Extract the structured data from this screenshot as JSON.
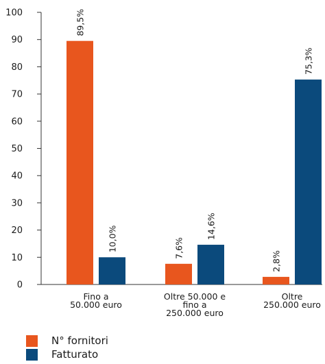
{
  "chart_data": {
    "type": "bar",
    "title": "",
    "xlabel": "",
    "ylabel": "",
    "ylim": [
      0,
      100
    ],
    "yticks": [
      0,
      10,
      20,
      30,
      40,
      50,
      60,
      70,
      80,
      90,
      100
    ],
    "grid": false,
    "legend_position": "bottom-left",
    "categories": [
      [
        "Fino a",
        "50.000 euro"
      ],
      [
        "Oltre 50.000 e",
        "fino a",
        "250.000 euro"
      ],
      [
        "Oltre",
        "250.000 euro"
      ]
    ],
    "series": [
      {
        "name": "N° fornitori",
        "color": "#E8561E",
        "values": [
          89.5,
          7.6,
          2.8
        ],
        "labels": [
          "89,5%",
          "7,6%",
          "2,8%"
        ]
      },
      {
        "name": "Fatturato",
        "color": "#0B4A7C",
        "values": [
          10.0,
          14.6,
          75.3
        ],
        "labels": [
          "10,0%",
          "14,6%",
          "75,3%"
        ]
      }
    ]
  }
}
